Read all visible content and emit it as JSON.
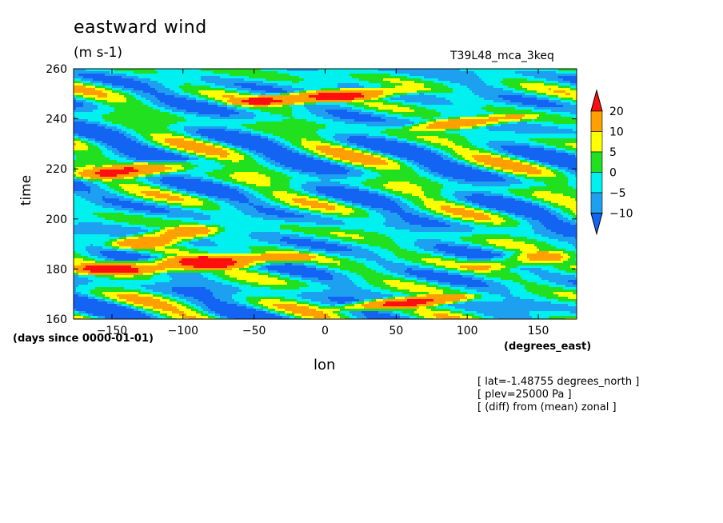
{
  "chart_data": {
    "type": "heatmap",
    "title": "eastward wind",
    "units": "(m s-1)",
    "run_name": "T39L48_mca_3keq",
    "ylabel": "time",
    "y_units": "(days since 0000-01-01)",
    "xlabel": "lon",
    "x_units": "(degrees_east)",
    "xlim": [
      -177,
      177
    ],
    "ylim": [
      160,
      260
    ],
    "x_ticks": [
      -150,
      -100,
      -50,
      0,
      50,
      100,
      150
    ],
    "y_ticks": [
      160,
      180,
      200,
      220,
      240,
      260
    ],
    "colorbar": {
      "levels": [
        -10,
        -5,
        0,
        5,
        10,
        20
      ],
      "colors": [
        "#1464f4",
        "#1ea0f0",
        "#00f0f0",
        "#20e020",
        "#ffff00",
        "#ffa000",
        "#ff1010"
      ],
      "extend": "both"
    },
    "annotations": [
      "[ lat=-1.48755 degrees_north ]",
      "[ plev=25000 Pa ]",
      "[ (diff) from (mean) zonal ]"
    ],
    "features": [
      {
        "lon": [
          -177,
          -20
        ],
        "time": [
          176,
          189
        ],
        "value": 20
      },
      {
        "lon": [
          10,
          100
        ],
        "time": [
          162,
          172
        ],
        "value": 20
      },
      {
        "lon": [
          -177,
          -90
        ],
        "time": [
          214,
          226
        ],
        "value": 15
      },
      {
        "lon": [
          -60,
          60
        ],
        "time": [
          244,
          255
        ],
        "value": 20
      },
      {
        "lon": [
          60,
          140
        ],
        "time": [
          234,
          244
        ],
        "value": 15
      },
      {
        "lon": [
          -150,
          -80
        ],
        "time": [
          186,
          200
        ],
        "value": 15
      },
      {
        "lon": [
          100,
          177
        ],
        "time": [
          178,
          190
        ],
        "value": 10
      }
    ]
  }
}
